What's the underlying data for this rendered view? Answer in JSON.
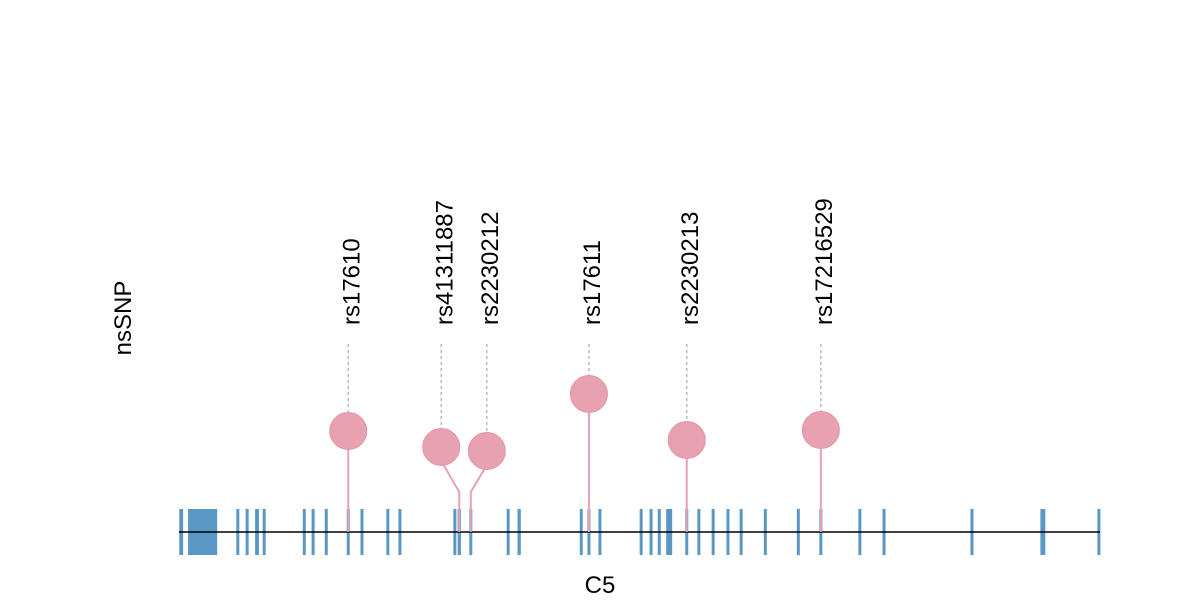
{
  "chart_data": {
    "type": "lollipop",
    "title": "",
    "xlabel": "C5",
    "ylabel": "nsSNP",
    "xlim": [
      0,
      1676
    ],
    "grid": false,
    "colors": {
      "exon": "#5b97c4",
      "snp": "#e8a1b1",
      "snp_stroke": "#e394a8",
      "backbone": "#000000",
      "guide": "#bbbbbb"
    },
    "exons": [
      [
        4,
        7
      ],
      [
        43,
        53
      ],
      [
        107,
        5
      ],
      [
        124,
        5
      ],
      [
        142,
        7
      ],
      [
        155,
        5
      ],
      [
        228,
        5
      ],
      [
        244,
        5
      ],
      [
        268,
        5
      ],
      [
        308,
        5
      ],
      [
        333,
        5
      ],
      [
        380,
        5
      ],
      [
        402,
        5
      ],
      [
        502,
        5
      ],
      [
        510,
        6
      ],
      [
        531,
        5
      ],
      [
        599,
        5
      ],
      [
        619,
        6
      ],
      [
        732,
        5
      ],
      [
        746,
        5
      ],
      [
        766,
        5
      ],
      [
        841,
        5
      ],
      [
        859,
        4
      ],
      [
        874,
        5
      ],
      [
        892,
        11
      ],
      [
        924,
        5
      ],
      [
        946,
        5
      ],
      [
        972,
        5
      ],
      [
        999,
        5
      ],
      [
        1023,
        5
      ],
      [
        1067,
        5
      ],
      [
        1127,
        5
      ],
      [
        1168,
        5
      ],
      [
        1239,
        5
      ],
      [
        1283,
        5
      ],
      [
        1443,
        5
      ],
      [
        1572,
        9
      ],
      [
        1674,
        5
      ]
    ],
    "snps": [
      {
        "id": "rs17610",
        "position": 308
      },
      {
        "id": "rs41311887",
        "position": 510
      },
      {
        "id": "rs2230212",
        "position": 531
      },
      {
        "id": "rs17611",
        "position": 746
      },
      {
        "id": "rs2230213",
        "position": 924
      },
      {
        "id": "rs17216529",
        "position": 1168
      }
    ]
  }
}
